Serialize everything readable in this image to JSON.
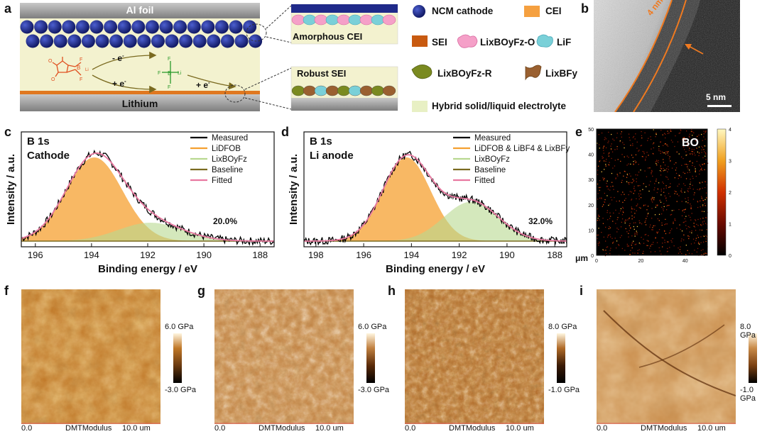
{
  "panel_labels": {
    "a": "a",
    "b": "b",
    "c": "c",
    "d": "d",
    "e": "e",
    "f": "f",
    "g": "g",
    "h": "h",
    "i": "i"
  },
  "schematic": {
    "al_foil": "Al foil",
    "lithium": "Lithium",
    "minus_e": "- e",
    "plus_e": "+ e",
    "plus_e2": "+ e",
    "amorphous_cei": "Amorphous CEI",
    "robust_sei": "Robust SEI",
    "colors": {
      "ncm": "#1f2a8a",
      "electrolyte": "#f3f2cf",
      "orange_layer": "#e07820",
      "foil": "#9a9a9a"
    }
  },
  "legend_a": {
    "ncm": "NCM cathode",
    "cei": "CEI",
    "sei": "SEI",
    "libof_o": "LixBOyFz-O",
    "lif": "LiF",
    "libof_r": "LixBOyFz-R",
    "libf": "LixBFy",
    "hybrid": "Hybrid solid/liquid electrolyte"
  },
  "tem": {
    "thickness": "4 nm",
    "scale": "5 nm"
  },
  "chart_data": [
    {
      "panel": "c",
      "type": "line",
      "title": "B 1s",
      "subtitle": "Cathode",
      "xlabel": "Binding energy / eV",
      "ylabel": "Intensity / a.u.",
      "xlim": [
        196.5,
        187.5
      ],
      "xticks": [
        196,
        194,
        192,
        190,
        188
      ],
      "annotation": "20.0%",
      "series": [
        {
          "name": "Measured",
          "color": "#000000"
        },
        {
          "name": "LiDFOB",
          "color": "#f5a030"
        },
        {
          "name": "LixBOyFz",
          "color": "#b8d890"
        },
        {
          "name": "Baseline",
          "color": "#7a6a20"
        },
        {
          "name": "Fitted",
          "color": "#e878a0"
        }
      ],
      "peaks": [
        {
          "name": "LiDFOB",
          "center": 193.9,
          "height": 1.0
        },
        {
          "name": "LixBOyFz",
          "center": 191.9,
          "height": 0.22
        }
      ]
    },
    {
      "panel": "d",
      "type": "line",
      "title": "B 1s",
      "subtitle": "Li anode",
      "xlabel": "Binding energy / eV",
      "ylabel": "Intensity / a.u.",
      "xlim": [
        198.5,
        187.5
      ],
      "xticks": [
        198,
        196,
        194,
        192,
        190,
        188
      ],
      "annotation": "32.0%",
      "series": [
        {
          "name": "Measured",
          "color": "#000000"
        },
        {
          "name": "LiDFOB & LiBF4 & LixBFy",
          "color": "#f5a030"
        },
        {
          "name": "LixBOyFz",
          "color": "#b8d890"
        },
        {
          "name": "Baseline",
          "color": "#7a6a20"
        },
        {
          "name": "Fitted",
          "color": "#e878a0"
        }
      ],
      "peaks": [
        {
          "name": "LiDFOB & LiBF4 & LixBFy",
          "center": 194.2,
          "height": 1.0
        },
        {
          "name": "LixBOyFz",
          "center": 191.5,
          "height": 0.47
        }
      ]
    },
    {
      "panel": "e",
      "type": "heatmap",
      "label": "BO",
      "xlabel": "μm",
      "xticks": [
        0,
        20,
        40
      ],
      "yticks": [
        0,
        10,
        20,
        30,
        40,
        50
      ],
      "colorbar_ticks": [
        0,
        1,
        2,
        3,
        4
      ]
    }
  ],
  "afm": [
    {
      "label": "f",
      "cmax": "6.0 GPa",
      "cmin": "-3.0 GPa",
      "x0": "0.0",
      "xmid": "DMTModulus",
      "x1": "10.0 um"
    },
    {
      "label": "g",
      "cmax": "6.0 GPa",
      "cmin": "-3.0 GPa",
      "x0": "0.0",
      "xmid": "DMTModulus",
      "x1": "10.0 um"
    },
    {
      "label": "h",
      "cmax": "8.0 GPa",
      "cmin": "-1.0 GPa",
      "x0": "0.0",
      "xmid": "DMTModulus",
      "x1": "10.0 um"
    },
    {
      "label": "i",
      "cmax": "8.0 GPa",
      "cmin": "-1.0 GPa",
      "x0": "0.0",
      "xmid": "DMTModulus",
      "x1": "10.0 um"
    }
  ]
}
